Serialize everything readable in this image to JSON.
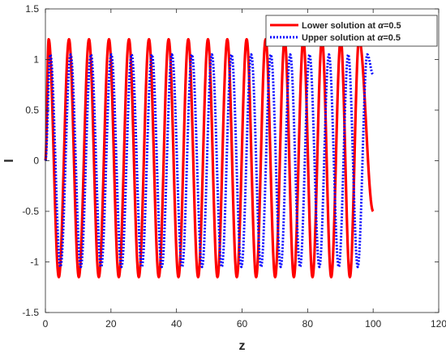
{
  "chart_data": {
    "type": "line",
    "title": "",
    "xlabel": "z",
    "ylabel": "I",
    "xlim": [
      0,
      120
    ],
    "ylim": [
      -1.5,
      1.5
    ],
    "xticks": [
      0,
      20,
      40,
      60,
      80,
      100,
      120
    ],
    "yticks": [
      -1.5,
      -1,
      -0.5,
      0,
      0.5,
      1,
      1.5
    ],
    "grid": false,
    "legend_position": "top-right",
    "series": [
      {
        "name_prefix": "Lower solution at ",
        "name_symbol": "α",
        "name_suffix": "=0.5",
        "color": "#ff0000",
        "style": "solid",
        "x_range": [
          0,
          100
        ],
        "peak_x": [
          1.0,
          7.2,
          13.3,
          19.4,
          25.5,
          31.6,
          37.6,
          43.6,
          49.6,
          55.5,
          61.4,
          67.2,
          73.0,
          78.7,
          84.4,
          90.1,
          95.7
        ],
        "peak_y": 1.2,
        "trough_x": [
          4.1,
          10.2,
          16.3,
          22.4,
          28.5,
          34.6,
          40.6,
          46.6,
          52.5,
          58.4,
          64.3,
          70.1,
          75.8,
          81.5,
          87.2,
          92.9
        ],
        "trough_y": -1.15,
        "start_y": 0.0,
        "end_y": -0.5
      },
      {
        "name_prefix": "Upper solution at ",
        "name_symbol": "α",
        "name_suffix": "=0.5",
        "color": "#0000ff",
        "style": "dotted",
        "x_range": [
          0,
          100
        ],
        "peak_x": [
          1.5,
          7.7,
          13.9,
          20.1,
          26.3,
          32.5,
          38.6,
          44.7,
          50.8,
          56.8,
          62.8,
          68.8,
          74.7,
          80.6,
          86.5,
          92.4,
          98.2
        ],
        "peak_y": 1.05,
        "trough_x": [
          4.6,
          10.8,
          17.0,
          23.2,
          29.4,
          35.5,
          41.7,
          47.8,
          53.8,
          59.8,
          65.8,
          71.8,
          77.7,
          83.6,
          89.5,
          95.3
        ],
        "trough_y": -1.05,
        "start_y": 0.0,
        "end_y": 0.85
      }
    ]
  }
}
